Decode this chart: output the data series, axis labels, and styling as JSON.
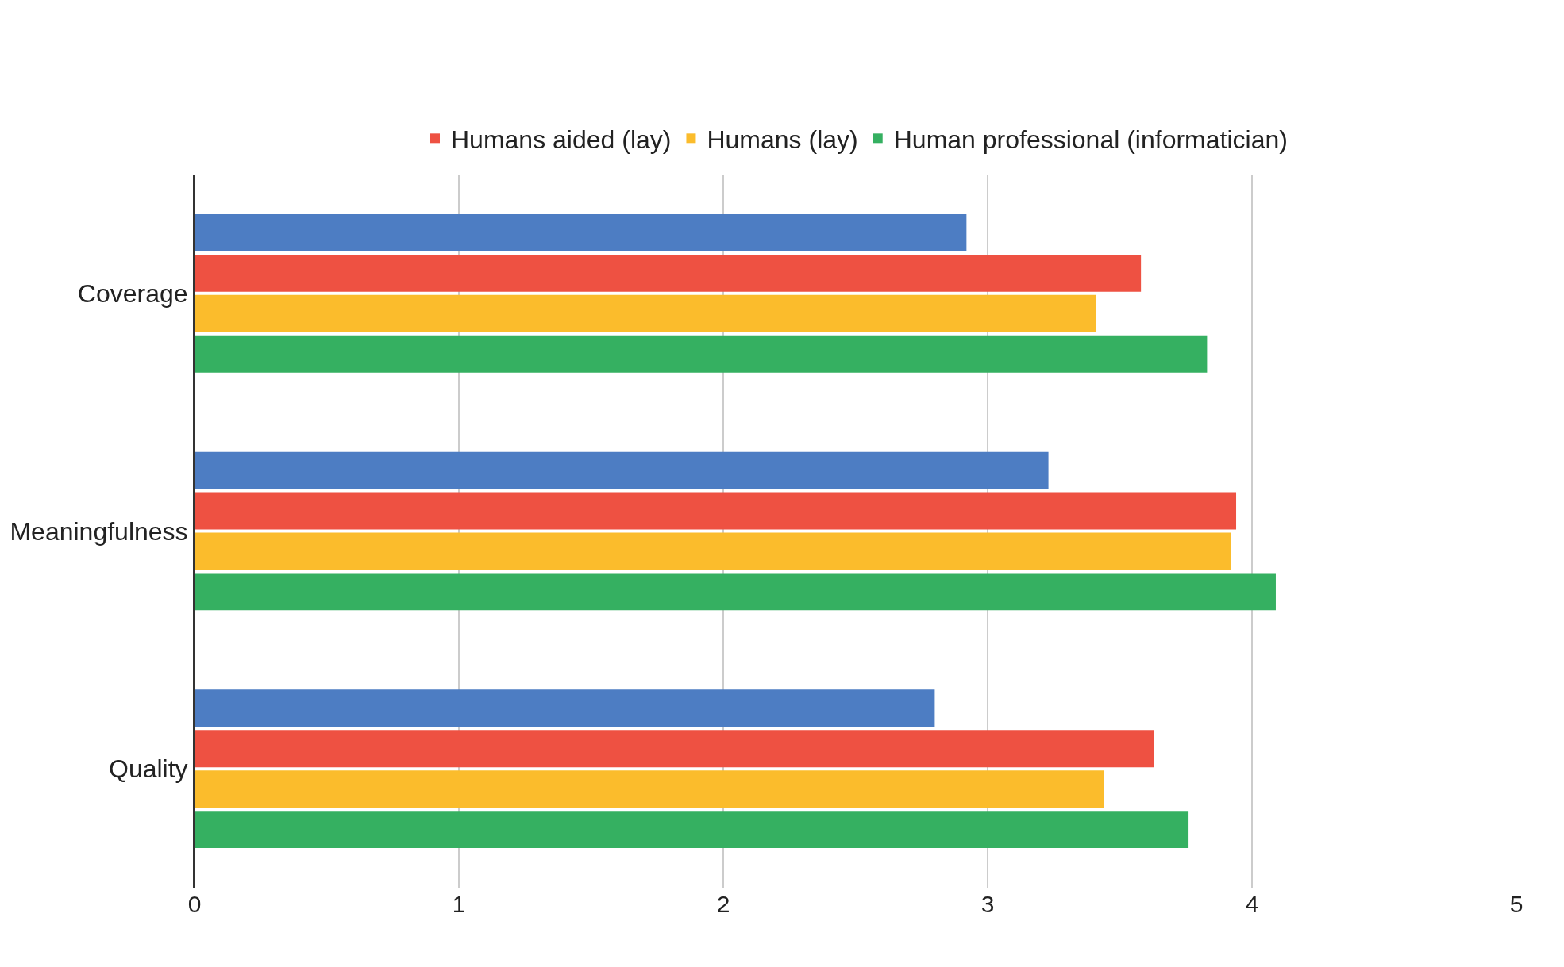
{
  "chart_data": {
    "type": "bar",
    "orientation": "horizontal",
    "categories": [
      "Coverage",
      "Meaningfulness",
      "Quality"
    ],
    "series": [
      {
        "color": "#4d7dc3",
        "values": [
          2.92,
          3.23,
          2.8
        ]
      },
      {
        "name": "Humans aided (lay)",
        "color": "#ee5142",
        "values": [
          3.58,
          3.94,
          3.63
        ]
      },
      {
        "name": "Humans (lay)",
        "color": "#fbbc2c",
        "values": [
          3.41,
          3.92,
          3.44
        ]
      },
      {
        "name": "Human professional (informatician)",
        "color": "#35b061",
        "values": [
          3.83,
          4.09,
          3.76
        ]
      }
    ],
    "xlim": [
      0,
      5
    ],
    "xticks": [
      0,
      1,
      2,
      3,
      4,
      5
    ],
    "grid": "x",
    "legend": "top"
  }
}
